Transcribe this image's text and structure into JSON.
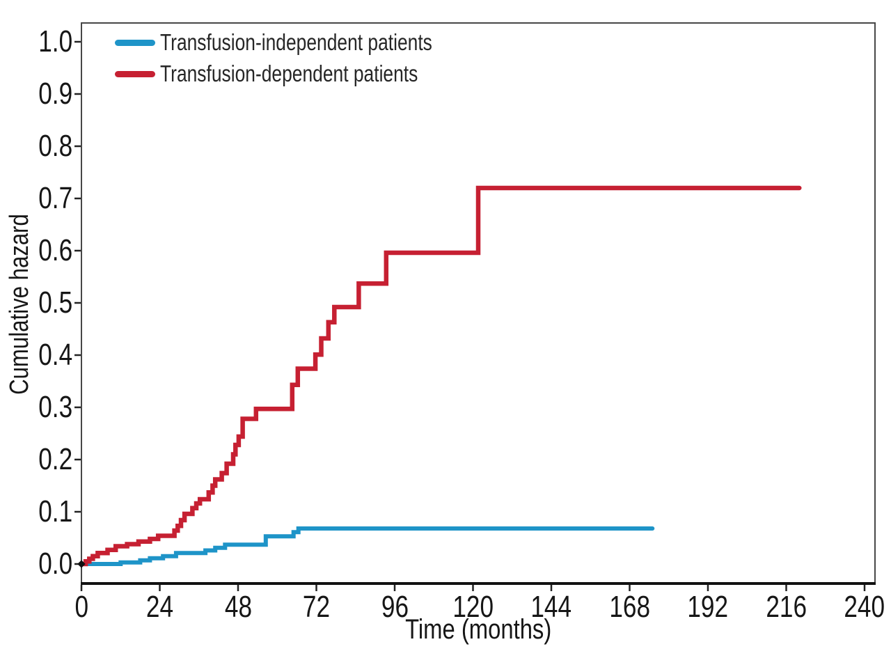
{
  "chart_data": {
    "type": "line",
    "subtype": "step-function-cumulative-hazard",
    "title": "",
    "xlabel": "Time (months)",
    "ylabel": "Cumulative hazard",
    "xlim": [
      0,
      240
    ],
    "ylim": [
      0.0,
      1.0
    ],
    "xticks": [
      0,
      24,
      48,
      72,
      96,
      120,
      144,
      168,
      192,
      216,
      240
    ],
    "ytick_labels": [
      "0.0",
      "0.1",
      "0.2",
      "0.3",
      "0.4",
      "0.5",
      "0.6",
      "0.7",
      "0.8",
      "0.9",
      "1.0"
    ],
    "grid": false,
    "legend_position": "top-left",
    "series": [
      {
        "name": "Transfusion-independent patients",
        "color": "#1e94c8",
        "points": [
          [
            0,
            0
          ],
          [
            12,
            0.003
          ],
          [
            18,
            0.007
          ],
          [
            21,
            0.011
          ],
          [
            25,
            0.015
          ],
          [
            29,
            0.021
          ],
          [
            38,
            0.026
          ],
          [
            41,
            0.031
          ],
          [
            44,
            0.037
          ],
          [
            56.5,
            0.053
          ],
          [
            65,
            0.061
          ],
          [
            66.5,
            0.068
          ],
          [
            175,
            0.068
          ]
        ]
      },
      {
        "name": "Transfusion-dependent patients",
        "color": "#c62032",
        "points": [
          [
            0,
            0
          ],
          [
            1.3,
            0.005
          ],
          [
            2.4,
            0.01
          ],
          [
            3.5,
            0.015
          ],
          [
            5,
            0.021
          ],
          [
            8,
            0.027
          ],
          [
            10.5,
            0.034
          ],
          [
            14,
            0.038
          ],
          [
            17.5,
            0.043
          ],
          [
            21,
            0.048
          ],
          [
            23.5,
            0.054
          ],
          [
            28.5,
            0.064
          ],
          [
            29.5,
            0.073
          ],
          [
            30.5,
            0.084
          ],
          [
            31.6,
            0.096
          ],
          [
            34,
            0.107
          ],
          [
            35.2,
            0.116
          ],
          [
            36.3,
            0.124
          ],
          [
            39,
            0.137
          ],
          [
            40.2,
            0.15
          ],
          [
            41,
            0.162
          ],
          [
            43,
            0.174
          ],
          [
            44.5,
            0.192
          ],
          [
            46.5,
            0.21
          ],
          [
            47.2,
            0.228
          ],
          [
            48.2,
            0.244
          ],
          [
            49.4,
            0.278
          ],
          [
            53.5,
            0.297
          ],
          [
            64.6,
            0.343
          ],
          [
            66.3,
            0.374
          ],
          [
            71.7,
            0.401
          ],
          [
            73.5,
            0.432
          ],
          [
            75.7,
            0.463
          ],
          [
            77.5,
            0.492
          ],
          [
            85,
            0.537
          ],
          [
            93.4,
            0.596
          ],
          [
            121.6,
            0.72
          ],
          [
            220,
            0.72
          ]
        ]
      }
    ]
  }
}
